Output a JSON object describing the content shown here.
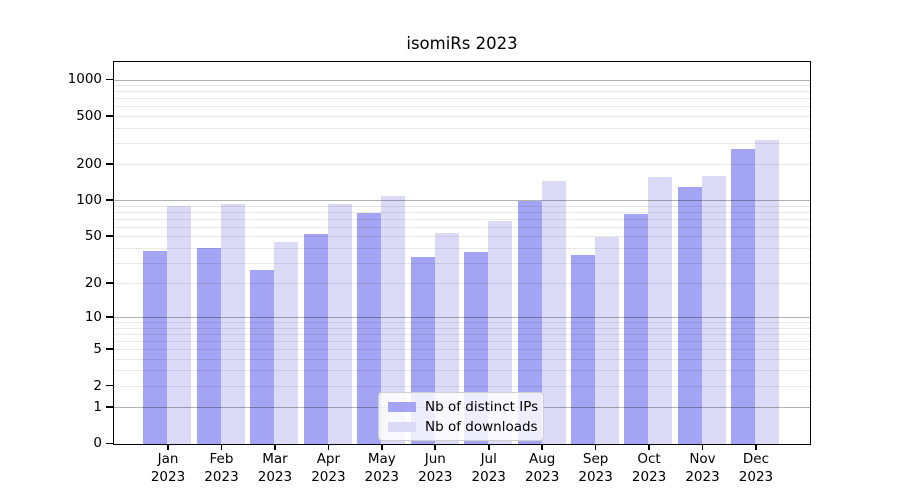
{
  "chart_data": {
    "type": "bar",
    "title": "isomiRs 2023",
    "categories": [
      "Jan",
      "Feb",
      "Mar",
      "Apr",
      "May",
      "Jun",
      "Jul",
      "Aug",
      "Sep",
      "Oct",
      "Nov",
      "Dec"
    ],
    "category_year": "2023",
    "series": [
      {
        "name": "Nb of distinct IPs",
        "color": "#a4a4f4",
        "values": [
          38,
          40,
          26,
          53,
          80,
          34,
          37,
          100,
          35,
          78,
          130,
          270
        ]
      },
      {
        "name": "Nb of downloads",
        "color": "#dbdbf8",
        "values": [
          91,
          95,
          45,
          94,
          110,
          54,
          68,
          145,
          50,
          158,
          162,
          320
        ]
      }
    ],
    "xlabel": "",
    "ylabel": "",
    "yscale": "log1p",
    "ylim": [
      0,
      1400
    ],
    "y_ticks": [
      0,
      1,
      2,
      5,
      10,
      20,
      50,
      100,
      200,
      500,
      1000
    ],
    "grid_major": [
      1,
      10,
      100,
      1000
    ],
    "grid_minor": [
      2,
      3,
      4,
      5,
      6,
      7,
      8,
      9,
      20,
      30,
      40,
      50,
      60,
      70,
      80,
      90,
      200,
      300,
      400,
      500,
      600,
      700,
      800,
      900
    ],
    "grid_on": true,
    "legend_position": "lower-center"
  }
}
